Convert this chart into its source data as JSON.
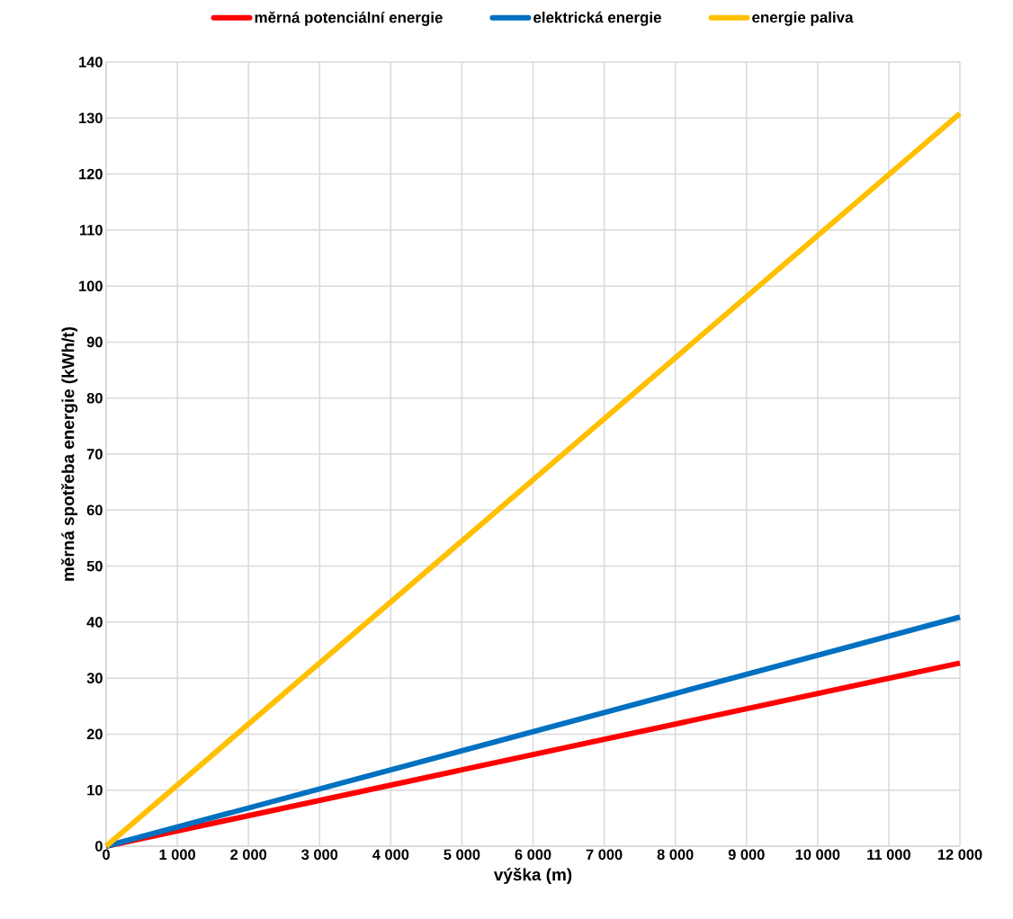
{
  "chart_data": {
    "type": "line",
    "xlabel": "výška (m)",
    "ylabel": "měrná spotřeba energie (kWh/t)",
    "x": [
      0,
      12000
    ],
    "series": [
      {
        "name": "měrná potenciální energie",
        "color": "#ff0000",
        "values": [
          0,
          32.7
        ]
      },
      {
        "name": "elektrická energie",
        "color": "#0070c0",
        "values": [
          0,
          40.9
        ]
      },
      {
        "name": "energie paliva",
        "color": "#ffc000",
        "values": [
          0,
          130.8
        ]
      }
    ],
    "xlim": [
      0,
      12000
    ],
    "xticks": [
      {
        "value": 0,
        "label": "0"
      },
      {
        "value": 1000,
        "label": "1 000"
      },
      {
        "value": 2000,
        "label": "2 000"
      },
      {
        "value": 3000,
        "label": "3 000"
      },
      {
        "value": 4000,
        "label": "4 000"
      },
      {
        "value": 5000,
        "label": "5 000"
      },
      {
        "value": 6000,
        "label": "6 000"
      },
      {
        "value": 7000,
        "label": "7 000"
      },
      {
        "value": 8000,
        "label": "8 000"
      },
      {
        "value": 9000,
        "label": "9 000"
      },
      {
        "value": 10000,
        "label": "10 000"
      },
      {
        "value": 11000,
        "label": "11 000"
      },
      {
        "value": 12000,
        "label": "12 000"
      }
    ],
    "ylim": [
      0,
      140
    ],
    "yticks": [
      0,
      10,
      20,
      30,
      40,
      50,
      60,
      70,
      80,
      90,
      100,
      110,
      120,
      130,
      140
    ],
    "grid": true,
    "legend": "top",
    "marker": "none",
    "line_style": "solid"
  }
}
